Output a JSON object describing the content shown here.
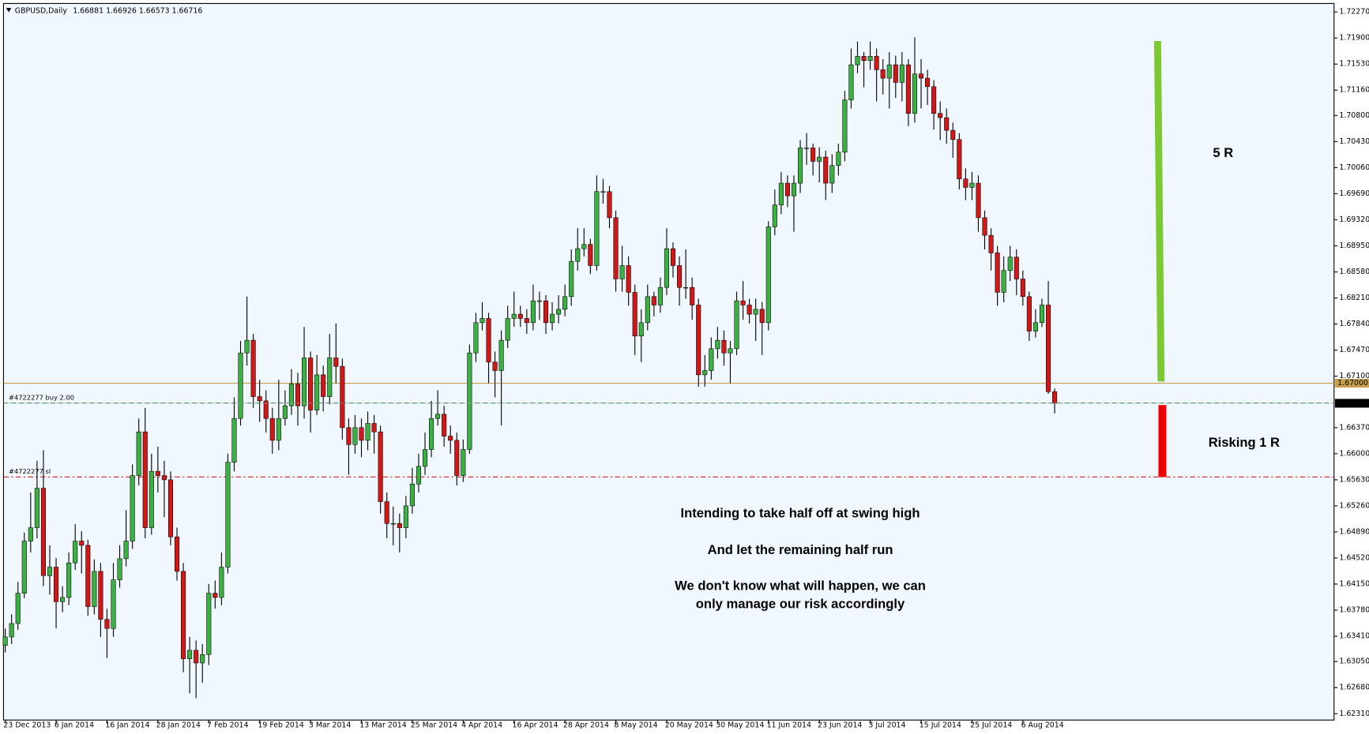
{
  "chart_data": {
    "type": "candlestick",
    "title": "GBPUSD,Daily",
    "up_color": "#3cb043",
    "down_color": "#d01818",
    "categories": [
      "23 Dec 2013",
      null,
      null,
      null,
      null,
      null,
      null,
      null,
      "6 Jan 2014",
      null,
      null,
      null,
      null,
      null,
      null,
      null,
      "16 Jan 2014",
      null,
      null,
      null,
      null,
      null,
      null,
      null,
      "28 Jan 2014",
      null,
      null,
      null,
      null,
      null,
      null,
      null,
      "7 Feb 2014",
      null,
      null,
      null,
      null,
      null,
      null,
      null,
      "19 Feb 2014",
      null,
      null,
      null,
      null,
      null,
      null,
      null,
      "3 Mar 2014",
      null,
      null,
      null,
      null,
      null,
      null,
      null,
      "13 Mar 2014",
      null,
      null,
      null,
      null,
      null,
      null,
      null,
      "25 Mar 2014",
      null,
      null,
      null,
      null,
      null,
      null,
      null,
      "4 Apr 2014",
      null,
      null,
      null,
      null,
      null,
      null,
      null,
      "16 Apr 2014",
      null,
      null,
      null,
      null,
      null,
      null,
      null,
      "28 Apr 2014",
      null,
      null,
      null,
      null,
      null,
      null,
      null,
      "8 May 2014",
      null,
      null,
      null,
      null,
      null,
      null,
      null,
      "20 May 2014",
      null,
      null,
      null,
      null,
      null,
      null,
      null,
      "30 May 2014",
      null,
      null,
      null,
      null,
      null,
      null,
      null,
      "11 Jun 2014",
      null,
      null,
      null,
      null,
      null,
      null,
      null,
      "23 Jun 2014",
      null,
      null,
      null,
      null,
      null,
      null,
      null,
      "3 Jul 2014",
      null,
      null,
      null,
      null,
      null,
      null,
      null,
      "15 Jul 2014",
      null,
      null,
      null,
      null,
      null,
      null,
      null,
      "25 Jul 2014",
      null,
      null,
      null,
      null,
      null,
      null,
      null,
      "6 Aug 2014",
      null,
      null,
      null,
      null,
      null
    ],
    "open": [
      1.6328,
      1.634,
      1.6359,
      1.6402,
      1.6476,
      1.6495,
      1.6551,
      1.6427,
      1.6439,
      1.639,
      1.6396,
      1.6445,
      1.6476,
      1.647,
      1.6383,
      1.6433,
      1.6365,
      1.6352,
      1.6421,
      1.6451,
      1.6476,
      1.6569,
      1.6631,
      1.6495,
      1.6575,
      1.6569,
      1.6563,
      1.6482,
      1.6433,
      1.6309,
      1.6321,
      1.6303,
      1.6315,
      1.6402,
      1.6396,
      1.6439,
      1.6588,
      1.665,
      1.6743,
      1.6761,
      1.6681,
      1.6675,
      1.665,
      1.6619,
      1.665,
      1.6668,
      1.6699,
      1.6668,
      1.6736,
      1.6662,
      1.6712,
      1.6681,
      1.6736,
      1.6724,
      1.6637,
      1.6613,
      1.6637,
      1.6619,
      1.6643,
      1.6631,
      1.6532,
      1.6501,
      1.6501,
      1.6495,
      1.6526,
      1.6557,
      1.6582,
      1.6606,
      1.665,
      1.6656,
      1.6625,
      1.6619,
      1.6569,
      1.6606,
      1.6743,
      1.6786,
      1.6792,
      1.673,
      1.6718,
      1.6761,
      1.6792,
      1.6798,
      1.6792,
      1.6786,
      1.6817,
      1.6817,
      1.6786,
      1.6798,
      1.6805,
      1.6823,
      1.6873,
      1.6891,
      1.6897,
      1.6867,
      1.6972,
      1.6972,
      1.6935,
      1.6848,
      1.6867,
      1.6829,
      1.6767,
      1.6786,
      1.6823,
      1.6811,
      1.6836,
      1.6891,
      1.6867,
      1.6836,
      1.6836,
      1.6811,
      1.6712,
      1.6718,
      1.6749,
      1.6761,
      1.6743,
      1.6749,
      1.6817,
      1.6811,
      1.6798,
      1.6805,
      1.6786,
      1.6922,
      1.6953,
      1.6984,
      1.6966,
      1.6984,
      1.7034,
      1.7034,
      1.7015,
      1.7021,
      1.6984,
      1.7009,
      1.7028,
      1.7102,
      1.7152,
      1.7164,
      1.7158,
      1.7164,
      1.7145,
      1.7133,
      1.7152,
      1.7127,
      1.7152,
      1.7083,
      1.7139,
      1.7133,
      1.7121,
      1.7083,
      1.7077,
      1.7059,
      1.7046,
      1.699,
      1.6978,
      1.6984,
      1.6935,
      1.691,
      1.6885,
      1.6829,
      1.686,
      1.6879,
      1.6848,
      1.6823,
      1.6774,
      1.6786,
      1.6811,
      1.66881
    ],
    "high": [
      1.6352,
      1.6372,
      1.6418,
      1.6488,
      1.6545,
      1.659,
      1.6605,
      1.647,
      1.6452,
      1.6412,
      1.646,
      1.65,
      1.649,
      1.6478,
      1.645,
      1.6445,
      1.638,
      1.6445,
      1.647,
      1.652,
      1.6585,
      1.665,
      1.6665,
      1.66,
      1.661,
      1.659,
      1.6575,
      1.6495,
      1.6445,
      1.634,
      1.6335,
      1.633,
      1.6415,
      1.642,
      1.646,
      1.66,
      1.668,
      1.676,
      1.6823,
      1.677,
      1.6705,
      1.669,
      1.6665,
      1.6705,
      1.669,
      1.672,
      1.6715,
      1.678,
      1.6745,
      1.674,
      1.6725,
      1.677,
      1.6785,
      1.6735,
      1.665,
      1.6655,
      1.665,
      1.666,
      1.6655,
      1.664,
      1.6545,
      1.6525,
      1.6515,
      1.654,
      1.658,
      1.66,
      1.663,
      1.6675,
      1.669,
      1.6668,
      1.664,
      1.663,
      1.662,
      1.6755,
      1.68,
      1.6815,
      1.68,
      1.6745,
      1.6775,
      1.681,
      1.683,
      1.681,
      1.6805,
      1.684,
      1.683,
      1.6825,
      1.6815,
      1.6825,
      1.684,
      1.689,
      1.692,
      1.692,
      1.6905,
      1.6995,
      1.699,
      1.698,
      1.6945,
      1.6895,
      1.688,
      1.684,
      1.6805,
      1.684,
      1.683,
      1.685,
      1.692,
      1.69,
      1.688,
      1.689,
      1.685,
      1.682,
      1.674,
      1.6765,
      1.678,
      1.6775,
      1.676,
      1.683,
      1.6845,
      1.682,
      1.682,
      1.6815,
      1.693,
      1.6975,
      1.7,
      1.6995,
      1.6995,
      1.7045,
      1.7055,
      1.704,
      1.7035,
      1.703,
      1.7025,
      1.704,
      1.7115,
      1.7175,
      1.7185,
      1.717,
      1.7185,
      1.7175,
      1.716,
      1.717,
      1.7165,
      1.717,
      1.716,
      1.7191,
      1.716,
      1.7145,
      1.713,
      1.71,
      1.709,
      1.707,
      1.7055,
      1.7005,
      1.7,
      1.6995,
      1.6945,
      1.692,
      1.6895,
      1.688,
      1.6895,
      1.689,
      1.686,
      1.683,
      1.6805,
      1.682,
      1.6845,
      1.66926
    ],
    "low": [
      1.6318,
      1.633,
      1.635,
      1.6395,
      1.646,
      1.648,
      1.6412,
      1.64,
      1.6352,
      1.6375,
      1.6385,
      1.6435,
      1.643,
      1.637,
      1.6372,
      1.634,
      1.631,
      1.634,
      1.641,
      1.644,
      1.6465,
      1.6555,
      1.648,
      1.6485,
      1.6545,
      1.651,
      1.647,
      1.642,
      1.629,
      1.626,
      1.6253,
      1.6275,
      1.63,
      1.638,
      1.6385,
      1.643,
      1.6575,
      1.664,
      1.6725,
      1.6665,
      1.6645,
      1.663,
      1.66,
      1.6605,
      1.664,
      1.6655,
      1.664,
      1.665,
      1.663,
      1.6655,
      1.666,
      1.667,
      1.67,
      1.662,
      1.657,
      1.66,
      1.6595,
      1.6605,
      1.66,
      1.6515,
      1.648,
      1.647,
      1.646,
      1.648,
      1.6515,
      1.6545,
      1.657,
      1.6595,
      1.664,
      1.661,
      1.66,
      1.6555,
      1.656,
      1.66,
      1.673,
      1.6775,
      1.67,
      1.668,
      1.664,
      1.675,
      1.678,
      1.678,
      1.677,
      1.6775,
      1.679,
      1.677,
      1.6775,
      1.6785,
      1.6795,
      1.681,
      1.686,
      1.688,
      1.6855,
      1.686,
      1.6955,
      1.692,
      1.683,
      1.683,
      1.681,
      1.674,
      1.673,
      1.6775,
      1.6795,
      1.68,
      1.6825,
      1.685,
      1.681,
      1.682,
      1.679,
      1.6695,
      1.6695,
      1.6705,
      1.6735,
      1.6725,
      1.67,
      1.674,
      1.679,
      1.6785,
      1.676,
      1.674,
      1.6775,
      1.691,
      1.694,
      1.695,
      1.6915,
      1.697,
      1.701,
      1.6995,
      1.6985,
      1.696,
      1.697,
      1.6995,
      1.7015,
      1.709,
      1.714,
      1.712,
      1.7145,
      1.71,
      1.711,
      1.709,
      1.7105,
      1.71,
      1.7065,
      1.707,
      1.709,
      1.7095,
      1.706,
      1.7045,
      1.704,
      1.702,
      1.6975,
      1.696,
      1.696,
      1.6915,
      1.689,
      1.686,
      1.681,
      1.6815,
      1.6845,
      1.6825,
      1.681,
      1.676,
      1.6765,
      1.678,
      1.6685,
      1.66573
    ],
    "close": [
      1.634,
      1.6359,
      1.6402,
      1.6476,
      1.6495,
      1.6551,
      1.6427,
      1.6439,
      1.639,
      1.6396,
      1.6445,
      1.6476,
      1.647,
      1.6383,
      1.6433,
      1.6365,
      1.6352,
      1.6421,
      1.6451,
      1.6476,
      1.6569,
      1.6631,
      1.6495,
      1.6575,
      1.6569,
      1.6563,
      1.6482,
      1.6433,
      1.6309,
      1.6321,
      1.6303,
      1.6315,
      1.6402,
      1.6396,
      1.6439,
      1.6588,
      1.665,
      1.6743,
      1.6761,
      1.6681,
      1.6675,
      1.665,
      1.6619,
      1.665,
      1.6668,
      1.6699,
      1.6668,
      1.6736,
      1.6662,
      1.6712,
      1.6681,
      1.6736,
      1.6724,
      1.6637,
      1.6613,
      1.6637,
      1.6619,
      1.6643,
      1.6631,
      1.6532,
      1.6501,
      1.6501,
      1.6495,
      1.6526,
      1.6557,
      1.6582,
      1.6606,
      1.665,
      1.6656,
      1.6625,
      1.6619,
      1.6569,
      1.6606,
      1.6743,
      1.6786,
      1.6792,
      1.673,
      1.6718,
      1.6761,
      1.6792,
      1.6798,
      1.6792,
      1.6786,
      1.6817,
      1.6817,
      1.6786,
      1.6798,
      1.6805,
      1.6823,
      1.6873,
      1.6891,
      1.6897,
      1.6867,
      1.6972,
      1.6972,
      1.6935,
      1.6848,
      1.6867,
      1.6829,
      1.6767,
      1.6786,
      1.6823,
      1.6811,
      1.6836,
      1.6891,
      1.6867,
      1.6836,
      1.6836,
      1.6811,
      1.6712,
      1.6718,
      1.6749,
      1.6761,
      1.6743,
      1.6749,
      1.6817,
      1.6811,
      1.6798,
      1.6805,
      1.6786,
      1.6922,
      1.6953,
      1.6984,
      1.6966,
      1.6984,
      1.7034,
      1.7034,
      1.7015,
      1.7021,
      1.6984,
      1.7009,
      1.7028,
      1.7102,
      1.7152,
      1.7164,
      1.7158,
      1.7164,
      1.7145,
      1.7133,
      1.7152,
      1.7127,
      1.7152,
      1.7083,
      1.7139,
      1.7133,
      1.7121,
      1.7083,
      1.7077,
      1.7059,
      1.7046,
      1.699,
      1.6978,
      1.6984,
      1.6935,
      1.691,
      1.6885,
      1.6829,
      1.686,
      1.6879,
      1.6848,
      1.6823,
      1.6774,
      1.6786,
      1.6811,
      1.66881,
      1.66716
    ],
    "ylim": [
      1.6222,
      1.7239
    ],
    "yticks": [
      {
        "value": 1.7227,
        "label": "1.72270"
      },
      {
        "value": 1.719,
        "label": "1.71900"
      },
      {
        "value": 1.7153,
        "label": "1.71530"
      },
      {
        "value": 1.7116,
        "label": "1.71160"
      },
      {
        "value": 1.708,
        "label": "1.70800"
      },
      {
        "value": 1.7043,
        "label": "1.70430"
      },
      {
        "value": 1.7006,
        "label": "1.70060"
      },
      {
        "value": 1.6969,
        "label": "1.69690"
      },
      {
        "value": 1.6932,
        "label": "1.69320"
      },
      {
        "value": 1.6895,
        "label": "1.68950"
      },
      {
        "value": 1.6858,
        "label": "1.68580"
      },
      {
        "value": 1.6821,
        "label": "1.68210"
      },
      {
        "value": 1.6784,
        "label": "1.67840"
      },
      {
        "value": 1.6747,
        "label": "1.67470"
      },
      {
        "value": 1.671,
        "label": "1.67100"
      },
      {
        "value": 1.6637,
        "label": "1.66370"
      },
      {
        "value": 1.66,
        "label": "1.66000"
      },
      {
        "value": 1.6563,
        "label": "1.65630"
      },
      {
        "value": 1.6526,
        "label": "1.65260"
      },
      {
        "value": 1.6489,
        "label": "1.64890"
      },
      {
        "value": 1.6452,
        "label": "1.64520"
      },
      {
        "value": 1.6415,
        "label": "1.64150"
      },
      {
        "value": 1.6378,
        "label": "1.63780"
      },
      {
        "value": 1.6341,
        "label": "1.63410"
      },
      {
        "value": 1.6305,
        "label": "1.63050"
      },
      {
        "value": 1.6268,
        "label": "1.62680"
      },
      {
        "value": 1.6231,
        "label": "1.62310"
      }
    ],
    "hlines": [
      {
        "value": 1.67,
        "label": "1.67000",
        "color": "#c8a04a"
      }
    ],
    "orders": [
      {
        "label": "#4722277 buy 2.00",
        "value": 1.6672,
        "color": "#2e9e2e"
      },
      {
        "label": "#4722277 sl",
        "value": 1.6567,
        "color": "#d02020"
      }
    ],
    "annotations": {
      "reward": "5 R",
      "risk": "Risking 1 R",
      "notes": [
        "Intending to take half off at swing high",
        "And let the remaining half run",
        "We don't know what will happen, we can",
        "only manage our risk accordingly"
      ]
    }
  }
}
